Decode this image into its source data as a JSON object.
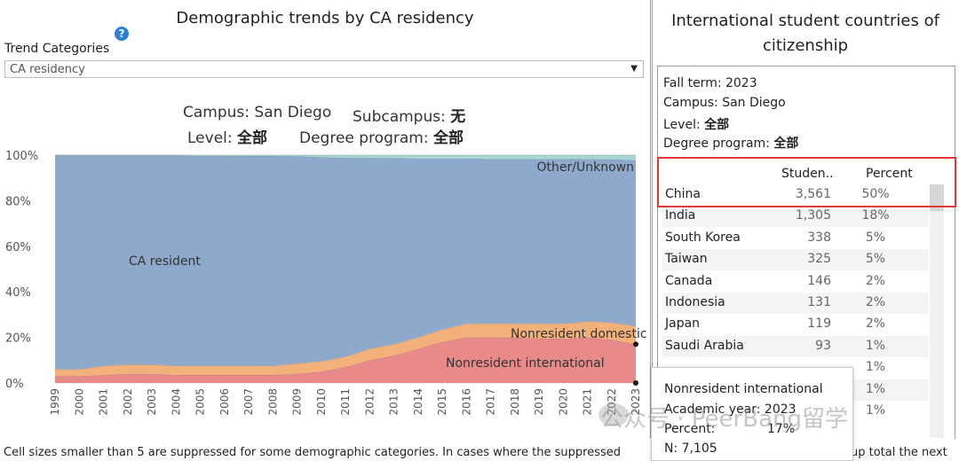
{
  "left": {
    "title": "Demographic trends by CA residency",
    "help_icon": "?",
    "trend_label": "Trend Categories",
    "trend_value": "CA residency",
    "filters": {
      "campus_label": "Campus: San Diego",
      "subcampus_label": "Subcampus:",
      "subcampus_value": "无",
      "level_label": "Level:",
      "level_value": "全部",
      "degree_label": "Degree program:",
      "degree_value": "全部"
    }
  },
  "chart_data": {
    "type": "area",
    "stacked": true,
    "normalized": true,
    "x": [
      1999,
      2000,
      2001,
      2002,
      2003,
      2004,
      2005,
      2006,
      2007,
      2008,
      2009,
      2010,
      2011,
      2012,
      2013,
      2014,
      2015,
      2016,
      2017,
      2018,
      2019,
      2020,
      2021,
      2022,
      2023
    ],
    "ylim": [
      0,
      100
    ],
    "yticks": [
      "0%",
      "20%",
      "40%",
      "60%",
      "80%",
      "100%"
    ],
    "xlabel": "",
    "ylabel": "",
    "series": [
      {
        "name": "Nonresident international",
        "color": "#e8898a",
        "values": [
          3,
          3,
          3.5,
          4,
          4,
          3.5,
          3.5,
          3.5,
          3.5,
          3.5,
          4,
          5,
          7,
          10,
          12,
          15,
          18,
          20,
          20,
          20,
          19.5,
          19.5,
          20,
          19,
          17
        ]
      },
      {
        "name": "Nonresident domestic",
        "color": "#f2b07a",
        "values": [
          3,
          3,
          4,
          4,
          4,
          4,
          4,
          4,
          4,
          4,
          4.5,
          4.5,
          4.5,
          5,
          5,
          5,
          5.5,
          6,
          6,
          6,
          6.5,
          6.5,
          7,
          7.5,
          8
        ]
      },
      {
        "name": "CA resident",
        "color": "#8fa9cc",
        "values": [
          93.8,
          93.8,
          92.3,
          91.8,
          91.8,
          92.3,
          92.2,
          92.2,
          92.1,
          92.1,
          91,
          89.6,
          87.3,
          83.8,
          81.7,
          78.5,
          75,
          72.5,
          72.3,
          72.3,
          72.2,
          72.3,
          71.2,
          71.7,
          72.7
        ]
      },
      {
        "name": "Other/Unknown",
        "color": "#a6d8d3",
        "values": [
          0.2,
          0.2,
          0.2,
          0.2,
          0.2,
          0.2,
          0.3,
          0.3,
          0.4,
          0.4,
          0.5,
          0.9,
          1.2,
          1.2,
          1.3,
          1.5,
          1.5,
          1.5,
          1.7,
          1.7,
          1.8,
          1.7,
          1.8,
          1.8,
          2.3
        ]
      }
    ],
    "annotations": [
      "CA resident",
      "Other/Unknown",
      "Nonresident domestic",
      "Nonresident international"
    ]
  },
  "footer": {
    "note": "Cell sizes smaller than 5 are suppressed for some demographic categories. In cases where the suppressed",
    "note_right": "up total the next"
  },
  "right": {
    "title_line1": "International student countries of",
    "title_line2": "citizenship",
    "info": {
      "fall_term": "Fall term: 2023",
      "campus": "Campus: San Diego",
      "level_label": "Level:",
      "level_value": "全部",
      "degree_label": "Degree program:",
      "degree_value": "全部"
    },
    "table": {
      "col_count": "Studen..",
      "col_pct": "Percent",
      "rows": [
        {
          "country": "China",
          "count": "3,561",
          "pct": "50%"
        },
        {
          "country": "India",
          "count": "1,305",
          "pct": "18%"
        },
        {
          "country": "South Korea",
          "count": "338",
          "pct": "5%"
        },
        {
          "country": "Taiwan",
          "count": "325",
          "pct": "5%"
        },
        {
          "country": "Canada",
          "count": "146",
          "pct": "2%"
        },
        {
          "country": "Indonesia",
          "count": "131",
          "pct": "2%"
        },
        {
          "country": "Japan",
          "count": "119",
          "pct": "2%"
        },
        {
          "country": "Saudi Arabia",
          "count": "93",
          "pct": "1%"
        },
        {
          "country": "",
          "count": "",
          "pct": "1%"
        },
        {
          "country": "",
          "count": "",
          "pct": "1%"
        },
        {
          "country": "",
          "count": "",
          "pct": "1%"
        }
      ]
    }
  },
  "tooltip": {
    "series": "Nonresident international",
    "year": "Academic year: 2023",
    "percent_label": "Percent:",
    "percent_value": "17%",
    "n": "N: 7,105"
  },
  "watermark": "公众号 · PeerBang留学"
}
